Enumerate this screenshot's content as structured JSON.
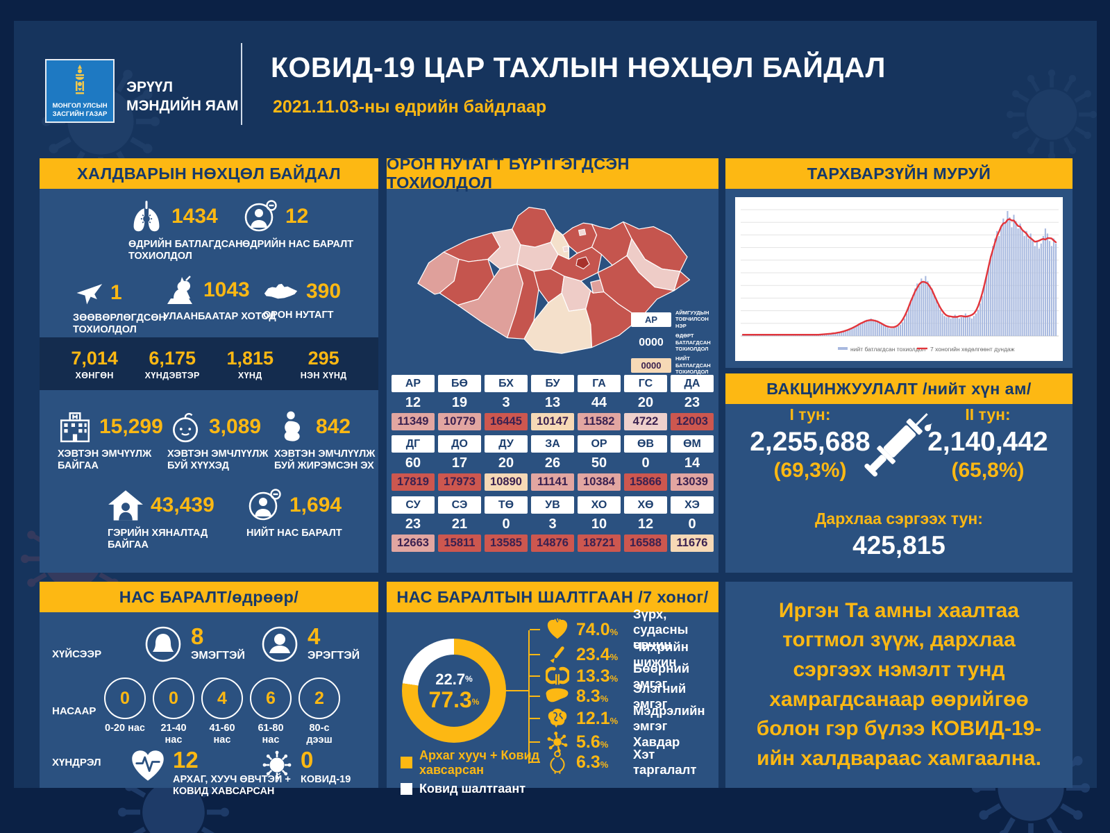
{
  "palette": {
    "page_bg": "#16345d",
    "frame": "#0b2145",
    "panel": "#2b5180",
    "accent_yellow": "#fdb813",
    "band_text": "#16396b",
    "severity_band": "#142c4e"
  },
  "header": {
    "logo_caption_line1": "МОНГОЛ УЛСЫН",
    "logo_caption_line2": "ЗАСГИЙН ГАЗАР",
    "ministry_line1": "ЭРҮҮЛ",
    "ministry_line2": "МЭНДИЙН ЯАМ",
    "title": "КОВИД-19 ЦАР ТАХЛЫН НӨХЦӨЛ БАЙДАЛ",
    "date": "2021.11.03-ны өдрийн байдлаар"
  },
  "infection": {
    "title": "ХАЛДВАРЫН НӨХЦӨЛ БАЙДАЛ",
    "row1": [
      {
        "icon": "lungs-icon",
        "value": "1434",
        "label": "ӨДРИЙН БАТЛАГДСАН ТОХИОЛДОЛ"
      },
      {
        "icon": "person-minus-icon",
        "value": "12",
        "label": "ӨДРИЙН НАС БАРАЛТ"
      }
    ],
    "row2": [
      {
        "icon": "airplane-icon",
        "value": "1",
        "label": "ЗӨӨВӨРЛӨГДСӨН ТОХИОЛДОЛ"
      },
      {
        "icon": "statue-icon",
        "value": "1043",
        "label": "УЛААНБААТАР ХОТОД"
      },
      {
        "icon": "mongolia-icon",
        "value": "390",
        "label": "ОРОН НУТАГТ"
      }
    ],
    "severity": [
      {
        "value": "7,014",
        "label": "ХӨНГӨН"
      },
      {
        "value": "6,175",
        "label": "ХҮНДЭВТЭР"
      },
      {
        "value": "1,815",
        "label": "ХҮНД"
      },
      {
        "value": "295",
        "label": "НЭН ХҮНД"
      }
    ],
    "row3": [
      {
        "icon": "hospital-icon",
        "value": "15,299",
        "label": "ХЭВТЭН ЭМЧҮҮЛЖ БАЙГАА"
      },
      {
        "icon": "baby-icon",
        "value": "3,089",
        "label": "ХЭВТЭН ЭМЧЛҮҮЛЖ БУЙ ХҮҮХЭД"
      },
      {
        "icon": "pregnant-icon",
        "value": "842",
        "label": "ХЭВТЭН ЭМЧЛҮҮЛЖ БУЙ ЖИРЭМСЭН ЭХ"
      }
    ],
    "row4": [
      {
        "icon": "home-care-icon",
        "value": "43,439",
        "label": "ГЭРИЙН ХЯНАЛТАД БАЙГАА"
      },
      {
        "icon": "person-minus-icon",
        "value": "1,694",
        "label": "НИЙТ НАС БАРАЛТ"
      }
    ]
  },
  "regional": {
    "title": "ОРОН НУТАГТ БҮРТГЭГДСЭН ТОХИОЛДОЛ",
    "legend": [
      {
        "sample": "АР",
        "style": "code",
        "label": "АЙМГУУДЫН ТОВЧИЛСОН НЭР"
      },
      {
        "sample": "0000",
        "style": "daily",
        "label": "ӨДӨРТ БАТЛАГДСАН ТОХИОЛДОЛ"
      },
      {
        "sample": "0000",
        "style": "total",
        "label": "НИЙТ БАТЛАГДСАН ТОХИОЛДОЛ"
      }
    ],
    "map_palette": {
      "light": "#dfa09b",
      "dark": "#c5554e",
      "pale": "#eeccc7",
      "cream": "#f4e0cb",
      "city": "#a8322c",
      "stroke": "#ffffff"
    },
    "map_region_shades": [
      "light",
      "dark",
      "dark",
      "pale",
      "light",
      "dark",
      "pale",
      "dark",
      "cream",
      "dark",
      "dark",
      "dark",
      "pale",
      "cream",
      "dark",
      "light",
      "dark",
      "dark",
      "pale",
      "dark",
      "dark"
    ],
    "table": [
      [
        {
          "code": "АР",
          "daily": "12",
          "total": "11349",
          "shade": "light"
        },
        {
          "code": "БӨ",
          "daily": "19",
          "total": "10779",
          "shade": "light"
        },
        {
          "code": "БХ",
          "daily": "3",
          "total": "16445",
          "shade": "dark"
        },
        {
          "code": "БУ",
          "daily": "13",
          "total": "10147",
          "shade": "cream"
        },
        {
          "code": "ГА",
          "daily": "44",
          "total": "11582",
          "shade": "light"
        },
        {
          "code": "ГС",
          "daily": "20",
          "total": "4722",
          "shade": "pale"
        },
        {
          "code": "ДА",
          "daily": "23",
          "total": "12003",
          "shade": "dark"
        }
      ],
      [
        {
          "code": "ДГ",
          "daily": "60",
          "total": "17819",
          "shade": "dark"
        },
        {
          "code": "ДО",
          "daily": "17",
          "total": "17973",
          "shade": "dark"
        },
        {
          "code": "ДУ",
          "daily": "20",
          "total": "10890",
          "shade": "cream"
        },
        {
          "code": "ЗА",
          "daily": "26",
          "total": "11141",
          "shade": "light"
        },
        {
          "code": "ОР",
          "daily": "50",
          "total": "10384",
          "shade": "light"
        },
        {
          "code": "ӨВ",
          "daily": "0",
          "total": "15866",
          "shade": "dark"
        },
        {
          "code": "ӨМ",
          "daily": "14",
          "total": "13039",
          "shade": "light"
        }
      ],
      [
        {
          "code": "СУ",
          "daily": "23",
          "total": "12663",
          "shade": "light"
        },
        {
          "code": "СЭ",
          "daily": "21",
          "total": "15811",
          "shade": "dark"
        },
        {
          "code": "ТӨ",
          "daily": "0",
          "total": "13585",
          "shade": "dark"
        },
        {
          "code": "УВ",
          "daily": "3",
          "total": "14876",
          "shade": "dark"
        },
        {
          "code": "ХО",
          "daily": "10",
          "total": "18721",
          "shade": "dark"
        },
        {
          "code": "ХӨ",
          "daily": "12",
          "total": "16588",
          "shade": "dark"
        },
        {
          "code": "ХЭ",
          "daily": "0",
          "total": "11676",
          "shade": "cream"
        }
      ]
    ]
  },
  "curve": {
    "title": "ТАРХВАРЗҮЙН МУРУЙ",
    "chart_data": {
      "type": "area",
      "title": "ТАРХВАРЗҮЙН МУРУЙ",
      "grid": "horizontal",
      "x_axis": {
        "label": "",
        "ticks_visible": false
      },
      "y_axis": {
        "label": "",
        "ticks_visible": false,
        "range": [
          0,
          100
        ]
      },
      "legend_position": "bottom",
      "series": [
        {
          "name": "нийт батлагдсан тохиолдол",
          "type": "bar",
          "color": "#a8b9df",
          "unit": "relative % of peak",
          "values": [
            1,
            1,
            1,
            1,
            1,
            1,
            1,
            1,
            1,
            1,
            1,
            1,
            1,
            1,
            1,
            1,
            1,
            1,
            1,
            1,
            1,
            1,
            1,
            1,
            1,
            1,
            1,
            1,
            1,
            1,
            1,
            1,
            1,
            1,
            1,
            1,
            1,
            1,
            1,
            1,
            2,
            2,
            2,
            2,
            2,
            2,
            3,
            3,
            4,
            4,
            5,
            5,
            6,
            7,
            8,
            9,
            10,
            11,
            12,
            13,
            12,
            14,
            13,
            13,
            12,
            11,
            10,
            9,
            8,
            7,
            6,
            6,
            7,
            7,
            8,
            9,
            11,
            14,
            18,
            23,
            28,
            33,
            38,
            42,
            40,
            46,
            43,
            48,
            44,
            41,
            38,
            34,
            29,
            25,
            21,
            18,
            16,
            15,
            16,
            14,
            15,
            17,
            16,
            14,
            15,
            16,
            18,
            16,
            15,
            14,
            16,
            18,
            21,
            26,
            32,
            40,
            48,
            56,
            64,
            72,
            78,
            84,
            80,
            88,
            94,
            90,
            100,
            95,
            87,
            97,
            92,
            86,
            90,
            84,
            80,
            84,
            78,
            82,
            76,
            72,
            76,
            70,
            74,
            80,
            86,
            82,
            76,
            72,
            78,
            74
          ]
        },
        {
          "name": "7 хоногийн хөдөлгөөнт дундаж",
          "type": "line",
          "color": "#e2353b",
          "derived_from": "7-point moving average of bar series"
        }
      ]
    }
  },
  "vaccination": {
    "title": "ВАКЦИНЖУУЛАЛТ /нийт хүн ам/",
    "dose1_label": "I тун:",
    "dose1_value": "2,255,688",
    "dose1_pct": "(69,3%)",
    "dose2_label": "II тун:",
    "dose2_value": "2,140,442",
    "dose2_pct": "(65,8%)",
    "booster_label": "Дархлаа сэргээх тун:",
    "booster_value": "425,815"
  },
  "deaths": {
    "title": "НАС БАРАЛТ/өдрөөр/",
    "gender_row_label": "ХҮЙСЭЭР",
    "genders": [
      {
        "icon": "female-icon",
        "value": "8",
        "label": "ЭМЭГТЭЙ"
      },
      {
        "icon": "male-icon",
        "value": "4",
        "label": "ЭРЭГТЭЙ"
      }
    ],
    "age_row_label": "НАСААР",
    "ages": [
      {
        "value": "0",
        "label": "0-20 нас"
      },
      {
        "value": "0",
        "label": "21-40 нас"
      },
      {
        "value": "4",
        "label": "41-60 нас"
      },
      {
        "value": "6",
        "label": "61-80 нас"
      },
      {
        "value": "2",
        "label": "80-с дээш"
      }
    ],
    "complication_row_label": "ХҮНДРЭЛ",
    "complications": [
      {
        "icon": "heart-pulse-icon",
        "value": "12",
        "label": "АРХАГ, ХУУЧ ӨВЧТЭЙ + КОВИД ХАВСАРСАН"
      },
      {
        "icon": "virus-icon",
        "value": "0",
        "label": "КОВИД-19"
      }
    ]
  },
  "causes": {
    "title": "НАС БАРАЛТЫН ШАЛТГААН /7 хоног/",
    "chart_data": {
      "type": "pie",
      "slices": [
        {
          "label": "Архаг хууч + Ковид хавсарсан",
          "value": 77.3,
          "color": "#fdb813"
        },
        {
          "label": "Ковид шалтгаант",
          "value": 22.7,
          "color": "#ffffff"
        }
      ]
    },
    "donut_primary": "77.3",
    "donut_secondary": "22.7",
    "pct_symbol": "%",
    "legend": [
      {
        "color": "#fdb813",
        "text_color": "#fdb813",
        "label": "Архаг хууч + Ковид хавсарсан"
      },
      {
        "color": "#ffffff",
        "text_color": "#ffffff",
        "label": "Ковид шалтгаант"
      }
    ],
    "items": [
      {
        "icon": "heart-icon",
        "pct": "74.0",
        "label": "Зүрх, судасны өвчин"
      },
      {
        "icon": "lancet-icon",
        "pct": "23.4",
        "label": "Чихрийн шижин"
      },
      {
        "icon": "kidney-icon",
        "pct": "13.3",
        "label": "Бөөрний эмгэг"
      },
      {
        "icon": "liver-icon",
        "pct": "8.3",
        "label": "Элэгний эмгэг"
      },
      {
        "icon": "brain-icon",
        "pct": "12.1",
        "label": "Мэдрэлийн эмгэг"
      },
      {
        "icon": "cancer-icon",
        "pct": "5.6",
        "label": "Хавдар"
      },
      {
        "icon": "obesity-icon",
        "pct": "6.3",
        "label": "Хэт таргалалт"
      }
    ]
  },
  "message": {
    "text": "Иргэн Та амны хаалтаа тогтмол зүүж, дархлаа сэргээх нэмэлт тунд хамрагдсанаар өөрийгөө болон гэр бүлээ КОВИД-19-ийн халдвараас хамгаална."
  }
}
